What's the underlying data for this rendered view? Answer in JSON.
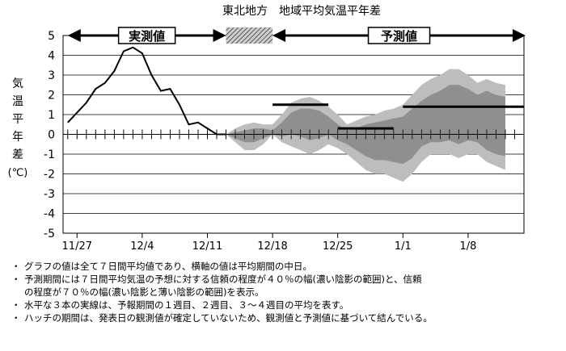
{
  "chart_data": {
    "type": "line",
    "title": "東北地方　地域平均気温平年差",
    "ylabel": "気温平年差(℃)",
    "ylim": [
      -5,
      5
    ],
    "yticks": [
      5,
      4,
      3,
      2,
      1,
      0,
      -1,
      -2,
      -3,
      -4,
      -5
    ],
    "xlim": [
      0,
      40
    ],
    "xtick_labels": [
      {
        "x": 1.5,
        "label": "11/27"
      },
      {
        "x": 8.5,
        "label": "12/4"
      },
      {
        "x": 15.5,
        "label": "12/11"
      },
      {
        "x": 22.5,
        "label": "12/18"
      },
      {
        "x": 29.5,
        "label": "12/25"
      },
      {
        "x": 36.5,
        "label": "1/1"
      },
      {
        "x": 43.5,
        "label": "1/8"
      }
    ],
    "grid": true,
    "observed": {
      "label": "実測値",
      "x": [
        0.5,
        1.5,
        2.5,
        3.5,
        4.5,
        5.5,
        6.5,
        7.5,
        8.5,
        9.5,
        10.5,
        11.5,
        12.5,
        13.5,
        14.5,
        15.5,
        16.5,
        17.5
      ],
      "y": [
        0.6,
        1.1,
        1.6,
        2.3,
        2.6,
        3.2,
        4.2,
        4.4,
        4.1,
        3.0,
        2.2,
        2.3,
        1.5,
        0.5,
        0.6,
        0.3,
        0.0,
        0.0
      ]
    },
    "hatch": {
      "x": [
        17.5,
        22.5
      ]
    },
    "forecast": {
      "label": "予測値",
      "x": [
        17.5,
        18.5,
        19.5,
        20.5,
        21.5,
        22.5,
        23.5,
        24.5,
        25.5,
        26.5,
        27.5,
        28.5,
        29.5,
        30.5,
        31.5,
        32.5,
        33.5,
        34.5,
        35.5,
        36.5,
        37.5,
        38.5,
        39.5,
        40.5,
        41.5,
        42.5,
        43.5,
        44.5,
        45.5,
        46.5,
        47.5
      ],
      "band70_upper": [
        0.0,
        0.3,
        0.5,
        0.6,
        0.5,
        0.5,
        1.0,
        1.6,
        1.8,
        1.9,
        1.7,
        1.4,
        1.0,
        0.5,
        0.7,
        0.9,
        1.0,
        1.2,
        1.3,
        1.5,
        2.0,
        2.5,
        2.8,
        3.0,
        3.3,
        3.3,
        3.0,
        2.6,
        2.8,
        2.6,
        2.5
      ],
      "band70_lower": [
        0.0,
        -0.4,
        -0.8,
        -0.8,
        -0.5,
        0.0,
        -0.4,
        -0.6,
        -0.8,
        -1.0,
        -0.8,
        -0.5,
        -0.7,
        -1.0,
        -1.4,
        -1.8,
        -2.0,
        -2.0,
        -2.2,
        -2.4,
        -2.0,
        -1.4,
        -1.0,
        -1.0,
        -1.0,
        -1.2,
        -1.0,
        -1.0,
        -1.4,
        -1.6,
        -1.8
      ],
      "band40_upper": [
        0.0,
        0.1,
        0.2,
        0.3,
        0.3,
        0.2,
        0.6,
        1.1,
        1.3,
        1.3,
        1.2,
        0.9,
        0.5,
        0.2,
        0.3,
        0.5,
        0.6,
        0.7,
        0.8,
        0.9,
        1.3,
        1.7,
        2.0,
        2.2,
        2.5,
        2.5,
        2.3,
        2.0,
        2.2,
        2.0,
        1.9
      ],
      "band40_lower": [
        0.0,
        -0.2,
        -0.4,
        -0.4,
        -0.2,
        0.0,
        -0.1,
        0.0,
        -0.1,
        -0.3,
        -0.2,
        0.0,
        -0.3,
        -0.5,
        -0.8,
        -1.1,
        -1.3,
        -1.3,
        -1.4,
        -1.5,
        -1.2,
        -0.6,
        -0.4,
        -0.4,
        -0.3,
        -0.5,
        -0.3,
        -0.4,
        -0.8,
        -1.0,
        -1.1
      ]
    },
    "mean_lines": [
      {
        "x_start": 22.5,
        "x_end": 28.5,
        "y": 1.5
      },
      {
        "x_start": 29.5,
        "x_end": 35.5,
        "y": 0.3
      },
      {
        "x_start": 36.5,
        "x_end": 49.5,
        "y": 1.4
      }
    ]
  },
  "notes": [
    {
      "bullet": "・",
      "text": "グラフの値は全て７日間平均値であり、横軸の値は平均期間の中日。"
    },
    {
      "bullet": "・",
      "text": "予測期間には７日間平均気温の予想に対する信頼の程度が４０％の幅(濃い陰影の範囲)と、信頼\nの程度が７０％の幅(濃い陰影と薄い陰影の範囲)を表示。"
    },
    {
      "bullet": "・",
      "text": "水平な３本の実線は、予報期間の１週目、２週目、３～４週目の平均を表す。"
    },
    {
      "bullet": "・",
      "text": "ハッチの期間は、発表日の観測値が確定していないため、観測値と予測値に基づいて結んでいる。"
    }
  ],
  "colors": {
    "band70": "#bdbdbd",
    "band40": "#8f8f8f",
    "line": "#000000",
    "grid": "#000000"
  }
}
